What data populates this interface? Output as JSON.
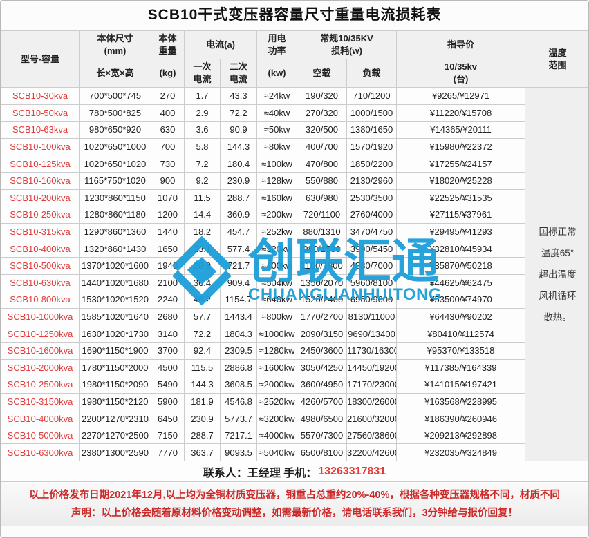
{
  "title": "SCB10干式变压器容量尺寸重量电流损耗表",
  "header": {
    "model": "型号-容量",
    "dims_l1": "本体尺寸",
    "dims_l2": "(mm)",
    "dims_sub": "长×宽×高",
    "weight_l1": "本体",
    "weight_l2": "重量",
    "weight_sub": "(kg)",
    "current_group": "电流(a)",
    "current_primary_l1": "一次",
    "current_primary_l2": "电流",
    "current_secondary_l1": "二次",
    "current_secondary_l2": "电流",
    "power_l1": "用电",
    "power_l2": "功率",
    "power_sub": "(kw)",
    "loss_l1": "常规10/35KV",
    "loss_l2": "损耗(w)",
    "loss_noload": "空载",
    "loss_load": "负载",
    "price": "指导价",
    "price_sub_l1": "10/35kv",
    "price_sub_l2": "(台)",
    "temp_l1": "温度",
    "temp_l2": "范围"
  },
  "table": {
    "rows": [
      {
        "model": "SCB10-30kva",
        "dims": "700*500*745",
        "weight": "270",
        "i1": "1.7",
        "i2": "43.3",
        "power": "≈24kw",
        "noload": "190/320",
        "load": "710/1200",
        "price": "¥9265/¥12971"
      },
      {
        "model": "SCB10-50kva",
        "dims": "780*500*825",
        "weight": "400",
        "i1": "2.9",
        "i2": "72.2",
        "power": "≈40kw",
        "noload": "270/320",
        "load": "1000/1500",
        "price": "¥11220/¥15708"
      },
      {
        "model": "SCB10-63kva",
        "dims": "980*650*920",
        "weight": "630",
        "i1": "3.6",
        "i2": "90.9",
        "power": "≈50kw",
        "noload": "320/500",
        "load": "1380/1650",
        "price": "¥14365/¥20111"
      },
      {
        "model": "SCB10-100kva",
        "dims": "1020*650*1000",
        "weight": "700",
        "i1": "5.8",
        "i2": "144.3",
        "power": "≈80kw",
        "noload": "400/700",
        "load": "1570/1920",
        "price": "¥15980/¥22372"
      },
      {
        "model": "SCB10-125kva",
        "dims": "1020*650*1020",
        "weight": "730",
        "i1": "7.2",
        "i2": "180.4",
        "power": "≈100kw",
        "noload": "470/800",
        "load": "1850/2200",
        "price": "¥17255/¥24157"
      },
      {
        "model": "SCB10-160kva",
        "dims": "1165*750*1020",
        "weight": "900",
        "i1": "9.2",
        "i2": "230.9",
        "power": "≈128kw",
        "noload": "550/880",
        "load": "2130/2960",
        "price": "¥18020/¥25228"
      },
      {
        "model": "SCB10-200kva",
        "dims": "1230*860*1150",
        "weight": "1070",
        "i1": "11.5",
        "i2": "288.7",
        "power": "≈160kw",
        "noload": "630/980",
        "load": "2530/3500",
        "price": "¥22525/¥31535"
      },
      {
        "model": "SCB10-250kva",
        "dims": "1280*860*1180",
        "weight": "1200",
        "i1": "14.4",
        "i2": "360.9",
        "power": "≈200kw",
        "noload": "720/1100",
        "load": "2760/4000",
        "price": "¥27115/¥37961"
      },
      {
        "model": "SCB10-315kva",
        "dims": "1290*860*1360",
        "weight": "1440",
        "i1": "18.2",
        "i2": "454.7",
        "power": "≈252kw",
        "noload": "880/1310",
        "load": "3470/4750",
        "price": "¥29495/¥41293"
      },
      {
        "model": "SCB10-400kva",
        "dims": "1320*860*1430",
        "weight": "1650",
        "i1": "23.1",
        "i2": "577.4",
        "power": "≈320kw",
        "noload": "980/1530",
        "load": "3990/5450",
        "price": "¥32810/¥45934"
      },
      {
        "model": "SCB10-500kva",
        "dims": "1370*1020*1600",
        "weight": "1940",
        "i1": "28.9",
        "i2": "721.7",
        "power": "≈400kw",
        "noload": "1160/1800",
        "load": "4880/7000",
        "price": "¥35870/¥50218"
      },
      {
        "model": "SCB10-630kva",
        "dims": "1440*1020*1680",
        "weight": "2100",
        "i1": "36.4",
        "i2": "909.4",
        "power": "≈504kw",
        "noload": "1350/2070",
        "load": "5960/8100",
        "price": "¥44625/¥62475"
      },
      {
        "model": "SCB10-800kva",
        "dims": "1530*1020*1520",
        "weight": "2240",
        "i1": "46.2",
        "i2": "1154.7",
        "power": "≈640kw",
        "noload": "1520/2400",
        "load": "6960/9600",
        "price": "¥53500/¥74970"
      },
      {
        "model": "SCB10-1000kva",
        "dims": "1585*1020*1640",
        "weight": "2680",
        "i1": "57.7",
        "i2": "1443.4",
        "power": "≈800kw",
        "noload": "1770/2700",
        "load": "8130/11000",
        "price": "¥64430/¥90202"
      },
      {
        "model": "SCB10-1250kva",
        "dims": "1630*1020*1730",
        "weight": "3140",
        "i1": "72.2",
        "i2": "1804.3",
        "power": "≈1000kw",
        "noload": "2090/3150",
        "load": "9690/13400",
        "price": "¥80410/¥112574"
      },
      {
        "model": "SCB10-1600kva",
        "dims": "1690*1150*1900",
        "weight": "3700",
        "i1": "92.4",
        "i2": "2309.5",
        "power": "≈1280kw",
        "noload": "2450/3600",
        "load": "11730/16300",
        "price": "¥95370/¥133518"
      },
      {
        "model": "SCB10-2000kva",
        "dims": "1780*1150*2000",
        "weight": "4500",
        "i1": "115.5",
        "i2": "2886.8",
        "power": "≈1600kw",
        "noload": "3050/4250",
        "load": "14450/19200",
        "price": "¥117385/¥164339"
      },
      {
        "model": "SCB10-2500kva",
        "dims": "1980*1150*2090",
        "weight": "5490",
        "i1": "144.3",
        "i2": "3608.5",
        "power": "≈2000kw",
        "noload": "3600/4950",
        "load": "17170/23000",
        "price": "¥141015/¥197421"
      },
      {
        "model": "SCB10-3150kva",
        "dims": "1980*1150*2120",
        "weight": "5900",
        "i1": "181.9",
        "i2": "4546.8",
        "power": "≈2520kw",
        "noload": "4260/5700",
        "load": "18300/26000",
        "price": "¥163568/¥228995"
      },
      {
        "model": "SCB10-4000kva",
        "dims": "2200*1270*2310",
        "weight": "6450",
        "i1": "230.9",
        "i2": "5773.7",
        "power": "≈3200kw",
        "noload": "4980/6500",
        "load": "21600/32000",
        "price": "¥186390/¥260946"
      },
      {
        "model": "SCB10-5000kva",
        "dims": "2270*1270*2500",
        "weight": "7150",
        "i1": "288.7",
        "i2": "7217.1",
        "power": "≈4000kw",
        "noload": "5570/7300",
        "load": "27560/38600",
        "price": "¥209213/¥292898"
      },
      {
        "model": "SCB10-6300kva",
        "dims": "2380*1300*2590",
        "weight": "7770",
        "i1": "363.7",
        "i2": "9093.5",
        "power": "≈5040kw",
        "noload": "6500/8100",
        "load": "32200/42600",
        "price": "¥232035/¥324849"
      }
    ]
  },
  "temperature_note_lines": [
    "国标正常",
    "温度65°",
    "超出温度",
    "风机循环",
    "散热。"
  ],
  "contact": {
    "label": "联系人：王经理 手机：",
    "phone": "13263317831"
  },
  "disclaimer": {
    "line1": "以上价格发布日期2021年12月,以上均为全铜材质变压器，铜重占总重约20%-40%，根据各种变压器规格不同，材质不同",
    "line2": "声明：以上价格会随着原材料价格变动调整，如需最新价格，请电话联系我们，3分钟给与报价回复！"
  },
  "watermark": {
    "cn": "创联汇通",
    "en": "CHUANGLIANHUITONG",
    "color": "#1B9FD9"
  },
  "colors": {
    "model_red": "#E03C3C",
    "disclaimer_red": "#CC2A2A",
    "phone_red": "#E53935",
    "watermark_blue": "#1B9FD9",
    "header_bg": "#F0F0F0",
    "grid_line": "#CCCCCC"
  }
}
